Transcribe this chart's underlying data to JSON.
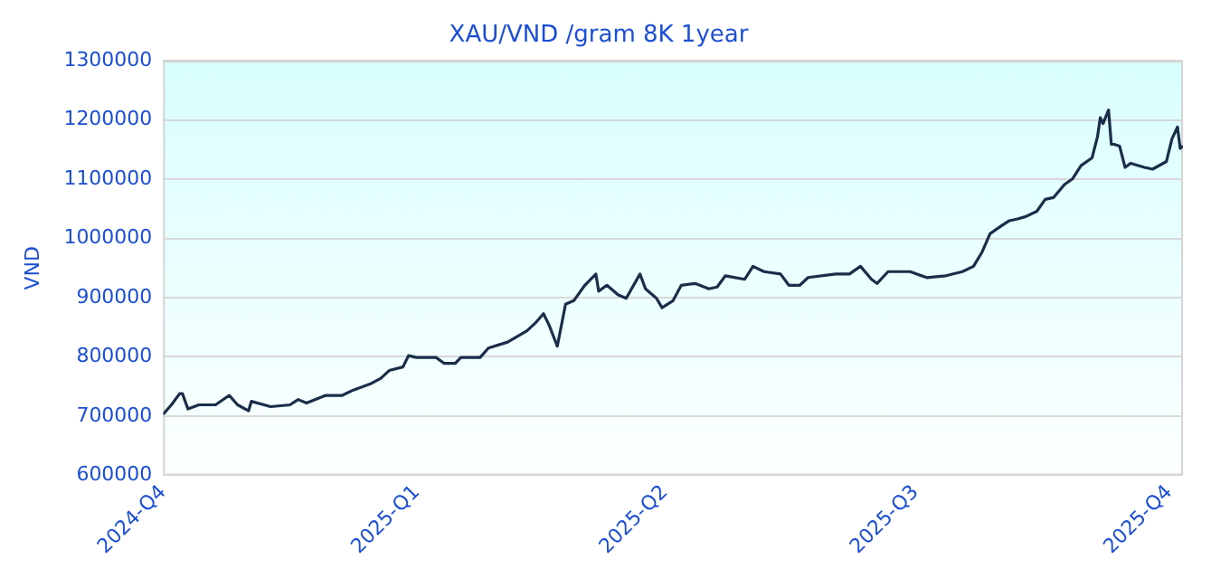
{
  "chart_data": {
    "type": "line",
    "title": "XAU/VND /gram 8K 1year",
    "ylabel": "VND",
    "series": [
      {
        "color": "#1a2e4a",
        "x": [
          "2024-10-01",
          "2024-10-04",
          "2024-10-07",
          "2024-10-08",
          "2024-10-10",
          "2024-10-14",
          "2024-10-20",
          "2024-10-25",
          "2024-10-28",
          "2024-11-01",
          "2024-11-02",
          "2024-11-09",
          "2024-11-16",
          "2024-11-19",
          "2024-11-22",
          "2024-11-29",
          "2024-12-05",
          "2024-12-09",
          "2024-12-15",
          "2024-12-19",
          "2024-12-22",
          "2024-12-27",
          "2024-12-29",
          "2025-01-01",
          "2025-01-08",
          "2025-01-11",
          "2025-01-15",
          "2025-01-17",
          "2025-01-24",
          "2025-01-27",
          "2025-02-03",
          "2025-02-10",
          "2025-02-13",
          "2025-02-16",
          "2025-02-18",
          "2025-02-21",
          "2025-02-24",
          "2025-02-27",
          "2025-03-03",
          "2025-03-07",
          "2025-03-08",
          "2025-03-11",
          "2025-03-15",
          "2025-03-18",
          "2025-03-23",
          "2025-03-25",
          "2025-03-29",
          "2025-03-31",
          "2025-04-04",
          "2025-04-07",
          "2025-04-12",
          "2025-04-17",
          "2025-04-20",
          "2025-04-23",
          "2025-04-30",
          "2025-05-03",
          "2025-05-07",
          "2025-05-13",
          "2025-05-16",
          "2025-05-20",
          "2025-05-23",
          "2025-06-02",
          "2025-06-07",
          "2025-06-11",
          "2025-06-15",
          "2025-06-17",
          "2025-06-21",
          "2025-06-29",
          "2025-07-05",
          "2025-07-12",
          "2025-07-18",
          "2025-07-22",
          "2025-07-25",
          "2025-07-28",
          "2025-08-01",
          "2025-08-04",
          "2025-08-07",
          "2025-08-10",
          "2025-08-14",
          "2025-08-17",
          "2025-08-20",
          "2025-08-24",
          "2025-08-27",
          "2025-08-30",
          "2025-09-03",
          "2025-09-05",
          "2025-09-06",
          "2025-09-07",
          "2025-09-09",
          "2025-09-10",
          "2025-09-11",
          "2025-09-13",
          "2025-09-15",
          "2025-09-17",
          "2025-09-22",
          "2025-09-25",
          "2025-09-30",
          "2025-10-02",
          "2025-10-04",
          "2025-10-05",
          "2025-10-06"
        ],
        "values": [
          703000,
          719000,
          738000,
          738000,
          712000,
          719000,
          719000,
          735000,
          719000,
          709000,
          725000,
          716000,
          719000,
          728000,
          722000,
          735000,
          735000,
          744000,
          754000,
          764000,
          777000,
          783000,
          802000,
          799000,
          799000,
          789000,
          789000,
          799000,
          799000,
          815000,
          825000,
          844000,
          857000,
          873000,
          854000,
          818000,
          889000,
          895000,
          921000,
          940000,
          911000,
          921000,
          905000,
          899000,
          940000,
          915000,
          899000,
          883000,
          895000,
          921000,
          924000,
          915000,
          918000,
          937000,
          931000,
          953000,
          944000,
          940000,
          921000,
          921000,
          934000,
          940000,
          940000,
          953000,
          931000,
          924000,
          944000,
          944000,
          934000,
          937000,
          944000,
          953000,
          976000,
          1008000,
          1021000,
          1030000,
          1033000,
          1037000,
          1046000,
          1066000,
          1069000,
          1091000,
          1101000,
          1123000,
          1136000,
          1172000,
          1204000,
          1194000,
          1217000,
          1159000,
          1159000,
          1156000,
          1120000,
          1127000,
          1120000,
          1117000,
          1130000,
          1168000,
          1188000,
          1152000,
          1156000
        ]
      }
    ],
    "xlim": [
      "2024-10-01",
      "2025-10-06"
    ],
    "xticks": [
      {
        "value": "2024-10-01",
        "label": "2024-Q4"
      },
      {
        "value": "2025-01-01",
        "label": "2025-Q1"
      },
      {
        "value": "2025-04-01",
        "label": "2025-Q2"
      },
      {
        "value": "2025-07-01",
        "label": "2025-Q3"
      },
      {
        "value": "2025-10-01",
        "label": "2025-Q4"
      }
    ],
    "ylim": [
      600000,
      1300000
    ],
    "yticks": [
      600000,
      700000,
      800000,
      900000,
      1000000,
      1100000,
      1200000,
      1300000
    ],
    "grid": "y",
    "legend": false,
    "marker": "none",
    "line_style": "solid"
  }
}
